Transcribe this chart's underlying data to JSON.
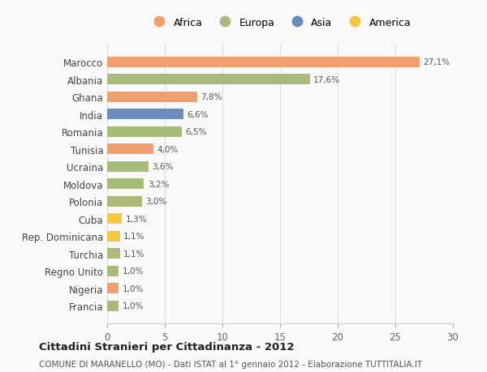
{
  "categories": [
    "Francia",
    "Nigeria",
    "Regno Unito",
    "Turchia",
    "Rep. Dominicana",
    "Cuba",
    "Polonia",
    "Moldova",
    "Ucraina",
    "Tunisia",
    "Romania",
    "India",
    "Ghana",
    "Albania",
    "Marocco"
  ],
  "values": [
    1.0,
    1.0,
    1.0,
    1.1,
    1.1,
    1.3,
    3.0,
    3.2,
    3.6,
    4.0,
    6.5,
    6.6,
    7.8,
    17.6,
    27.1
  ],
  "labels": [
    "1,0%",
    "1,0%",
    "1,0%",
    "1,1%",
    "1,1%",
    "1,3%",
    "3,0%",
    "3,2%",
    "3,6%",
    "4,0%",
    "6,5%",
    "6,6%",
    "7,8%",
    "17,6%",
    "27,1%"
  ],
  "colors": [
    "#a8bb7b",
    "#f0a070",
    "#a8bb7b",
    "#a8bb7b",
    "#f5c842",
    "#f5c842",
    "#a8bb7b",
    "#a8bb7b",
    "#a8bb7b",
    "#f0a070",
    "#a8bb7b",
    "#6b8cba",
    "#f0a070",
    "#a8bb7b",
    "#f0a070"
  ],
  "legend_labels": [
    "Africa",
    "Europa",
    "Asia",
    "America"
  ],
  "legend_colors": [
    "#f0a070",
    "#a8bb7b",
    "#6b8cba",
    "#f5c842"
  ],
  "title": "Cittadini Stranieri per Cittadinanza - 2012",
  "subtitle": "COMUNE DI MARANELLO (MO) - Dati ISTAT al 1° gennaio 2012 - Elaborazione TUTTITALIA.IT",
  "xlim": [
    0,
    30
  ],
  "xticks": [
    0,
    5,
    10,
    15,
    20,
    25,
    30
  ],
  "background_color": "#f9f9f9",
  "bar_height": 0.6,
  "grid_color": "#dddddd"
}
